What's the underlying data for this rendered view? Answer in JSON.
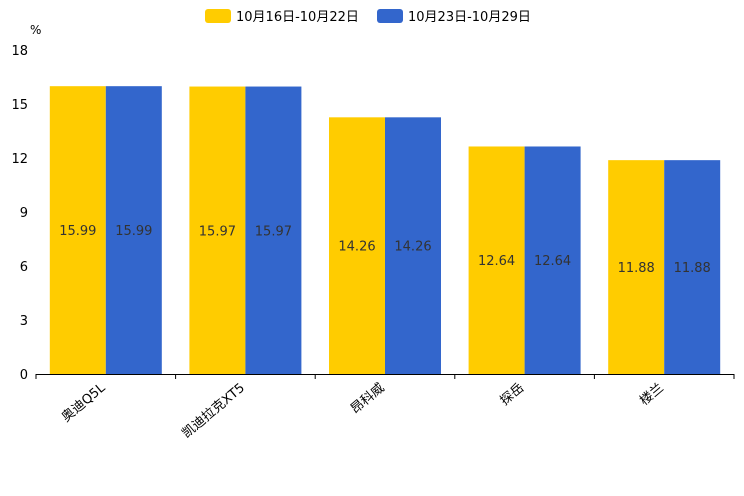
{
  "chart_data": {
    "type": "bar",
    "unit": "%",
    "categories": [
      "奥迪Q5L",
      "凯迪拉克XT5",
      "昂科威",
      "探岳",
      "楼兰"
    ],
    "series": [
      {
        "name": "10月16日-10月22日",
        "color": "#ffcc00",
        "values": [
          15.99,
          15.97,
          14.26,
          12.64,
          11.88
        ]
      },
      {
        "name": "10月23日-10月29日",
        "color": "#3366cc",
        "values": [
          15.99,
          15.97,
          14.26,
          12.64,
          11.88
        ]
      }
    ],
    "data_labels": [
      [
        "15.99",
        "15.97",
        "14.26",
        "12.64",
        "11.88"
      ],
      [
        "15.99",
        "15.97",
        "14.26",
        "12.64",
        "11.88"
      ]
    ],
    "yticks": [
      0,
      3,
      6,
      9,
      12,
      15,
      18
    ],
    "ylim": [
      0,
      18
    ],
    "legend_position": "top-center",
    "grid": false
  }
}
